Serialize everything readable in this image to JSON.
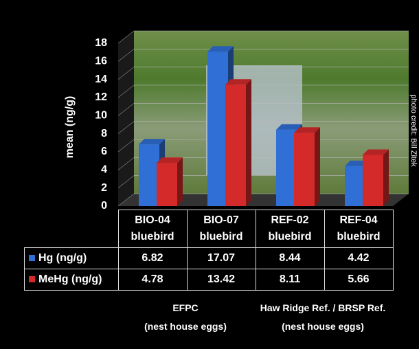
{
  "chart_data": {
    "type": "bar3d",
    "y_label": "mean (ng/g)",
    "categories": [
      "BIO-04 bluebird",
      "BIO-07 bluebird",
      "REF-02 bluebird",
      "REF-04 bluebird"
    ],
    "series": [
      {
        "name": "Hg (ng/g)",
        "color": "#2f6fd6",
        "values": [
          6.82,
          17.07,
          8.44,
          4.42
        ]
      },
      {
        "name": "MeHg (ng/g)",
        "color": "#d42a2a",
        "values": [
          4.78,
          13.42,
          8.11,
          5.66
        ]
      }
    ],
    "ylim": [
      0,
      18
    ],
    "yticks": [
      0,
      2,
      4,
      6,
      8,
      10,
      12,
      14,
      16,
      18
    ],
    "grid": true,
    "photo_credit": "photo credit: Bill Zitek",
    "annotations": [
      "EFPC",
      "(nest house eggs)",
      "Haw  Ridge Ref. / BRSP Ref.",
      "(nest house eggs)"
    ]
  }
}
